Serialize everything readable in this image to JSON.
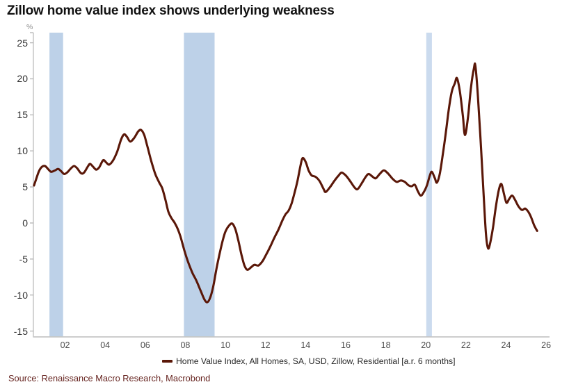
{
  "title": "Zillow home value index shows underlying weakness",
  "source": "Source: Renaissance Macro Research, Macrobond",
  "legend": {
    "label": "Home Value Index, All Homes, SA, USD, Zillow, Residential [a.r. 6 months]"
  },
  "colors": {
    "line": "#5a1708",
    "recession_band": "#bdd1e8",
    "recession_band_2020": "#cbdbee",
    "axis": "#c6c6c6",
    "tick": "#b4b4b4",
    "title_text": "#111111",
    "source_text": "#662420",
    "y_tick_label": "#333333",
    "x_tick_label": "#4d4d4d",
    "unit_label": "#8a8a8a"
  },
  "chart_data": {
    "type": "line",
    "title": "Zillow home value index shows underlying weakness",
    "xlabel": "",
    "ylabel": "%",
    "grid": false,
    "legend_position": "bottom-center",
    "xlim": [
      2000.42,
      2026.1
    ],
    "ylim": [
      -15.81,
      26.41
    ],
    "x_ticks": [
      {
        "year": 2002,
        "label": "02"
      },
      {
        "year": 2004,
        "label": "04"
      },
      {
        "year": 2006,
        "label": "06"
      },
      {
        "year": 2008,
        "label": "08"
      },
      {
        "year": 2010,
        "label": "10"
      },
      {
        "year": 2012,
        "label": "12"
      },
      {
        "year": 2014,
        "label": "14"
      },
      {
        "year": 2016,
        "label": "16"
      },
      {
        "year": 2018,
        "label": "18"
      },
      {
        "year": 2020,
        "label": "20"
      },
      {
        "year": 2022,
        "label": "22"
      },
      {
        "year": 2024,
        "label": "24"
      },
      {
        "year": 2026,
        "label": "26"
      }
    ],
    "y_ticks": [
      {
        "value": 25,
        "label": "25"
      },
      {
        "value": 20,
        "label": "20"
      },
      {
        "value": 15,
        "label": "15"
      },
      {
        "value": 10,
        "label": "10"
      },
      {
        "value": 5,
        "label": "5"
      },
      {
        "value": 0,
        "label": "0"
      },
      {
        "value": -5,
        "label": "-5"
      },
      {
        "value": -10,
        "label": "-10"
      },
      {
        "value": -15,
        "label": "-15"
      }
    ],
    "recession_bands": [
      {
        "from": 2001.22,
        "to": 2001.9,
        "color": "#bdd1e8"
      },
      {
        "from": 2007.93,
        "to": 2009.46,
        "color": "#bdd1e8"
      },
      {
        "from": 2020.02,
        "to": 2020.3,
        "color": "#cbdbee"
      }
    ],
    "series": [
      {
        "name": "Home Value Index, All Homes, SA, USD, Zillow, Residential [a.r. 6 months]",
        "color": "#5a1708",
        "points": [
          [
            2000.45,
            5.2
          ],
          [
            2000.55,
            6.0
          ],
          [
            2000.7,
            7.2
          ],
          [
            2000.85,
            7.8
          ],
          [
            2001.0,
            7.9
          ],
          [
            2001.15,
            7.5
          ],
          [
            2001.3,
            7.1
          ],
          [
            2001.5,
            7.3
          ],
          [
            2001.65,
            7.5
          ],
          [
            2001.8,
            7.2
          ],
          [
            2001.95,
            6.8
          ],
          [
            2002.1,
            7.0
          ],
          [
            2002.3,
            7.6
          ],
          [
            2002.45,
            7.9
          ],
          [
            2002.6,
            7.6
          ],
          [
            2002.8,
            6.9
          ],
          [
            2002.95,
            7.0
          ],
          [
            2003.15,
            7.9
          ],
          [
            2003.25,
            8.2
          ],
          [
            2003.4,
            7.8
          ],
          [
            2003.55,
            7.4
          ],
          [
            2003.7,
            7.7
          ],
          [
            2003.9,
            8.7
          ],
          [
            2004.05,
            8.4
          ],
          [
            2004.2,
            8.1
          ],
          [
            2004.4,
            8.7
          ],
          [
            2004.6,
            9.9
          ],
          [
            2004.8,
            11.6
          ],
          [
            2004.95,
            12.3
          ],
          [
            2005.1,
            11.9
          ],
          [
            2005.25,
            11.3
          ],
          [
            2005.45,
            11.8
          ],
          [
            2005.65,
            12.7
          ],
          [
            2005.8,
            12.9
          ],
          [
            2005.95,
            12.2
          ],
          [
            2006.1,
            10.7
          ],
          [
            2006.3,
            8.6
          ],
          [
            2006.5,
            6.8
          ],
          [
            2006.7,
            5.6
          ],
          [
            2006.85,
            4.8
          ],
          [
            2007.0,
            3.3
          ],
          [
            2007.15,
            1.6
          ],
          [
            2007.3,
            0.7
          ],
          [
            2007.45,
            0.1
          ],
          [
            2007.6,
            -0.7
          ],
          [
            2007.75,
            -1.8
          ],
          [
            2007.95,
            -3.8
          ],
          [
            2008.15,
            -5.5
          ],
          [
            2008.35,
            -6.9
          ],
          [
            2008.55,
            -8.0
          ],
          [
            2008.75,
            -9.3
          ],
          [
            2008.95,
            -10.6
          ],
          [
            2009.1,
            -11.0
          ],
          [
            2009.25,
            -10.3
          ],
          [
            2009.4,
            -8.7
          ],
          [
            2009.55,
            -6.4
          ],
          [
            2009.7,
            -4.4
          ],
          [
            2009.85,
            -2.6
          ],
          [
            2010.0,
            -1.2
          ],
          [
            2010.2,
            -0.3
          ],
          [
            2010.35,
            -0.1
          ],
          [
            2010.5,
            -0.9
          ],
          [
            2010.65,
            -2.5
          ],
          [
            2010.8,
            -4.4
          ],
          [
            2010.95,
            -5.9
          ],
          [
            2011.1,
            -6.5
          ],
          [
            2011.3,
            -6.1
          ],
          [
            2011.45,
            -5.8
          ],
          [
            2011.65,
            -5.9
          ],
          [
            2011.85,
            -5.3
          ],
          [
            2012.05,
            -4.3
          ],
          [
            2012.25,
            -3.2
          ],
          [
            2012.45,
            -2.0
          ],
          [
            2012.65,
            -0.9
          ],
          [
            2012.85,
            0.4
          ],
          [
            2013.0,
            1.2
          ],
          [
            2013.15,
            1.7
          ],
          [
            2013.3,
            2.7
          ],
          [
            2013.45,
            4.2
          ],
          [
            2013.6,
            5.9
          ],
          [
            2013.75,
            8.0
          ],
          [
            2013.85,
            9.0
          ],
          [
            2014.0,
            8.5
          ],
          [
            2014.15,
            7.3
          ],
          [
            2014.3,
            6.6
          ],
          [
            2014.5,
            6.4
          ],
          [
            2014.7,
            5.8
          ],
          [
            2014.9,
            4.7
          ],
          [
            2015.0,
            4.3
          ],
          [
            2015.2,
            4.9
          ],
          [
            2015.45,
            5.9
          ],
          [
            2015.65,
            6.6
          ],
          [
            2015.8,
            7.0
          ],
          [
            2016.0,
            6.6
          ],
          [
            2016.2,
            5.9
          ],
          [
            2016.45,
            4.9
          ],
          [
            2016.6,
            4.7
          ],
          [
            2016.8,
            5.5
          ],
          [
            2017.0,
            6.4
          ],
          [
            2017.15,
            6.8
          ],
          [
            2017.35,
            6.4
          ],
          [
            2017.5,
            6.2
          ],
          [
            2017.7,
            6.8
          ],
          [
            2017.9,
            7.3
          ],
          [
            2018.1,
            6.9
          ],
          [
            2018.35,
            6.1
          ],
          [
            2018.55,
            5.7
          ],
          [
            2018.75,
            5.9
          ],
          [
            2018.95,
            5.7
          ],
          [
            2019.15,
            5.2
          ],
          [
            2019.3,
            5.1
          ],
          [
            2019.45,
            5.3
          ],
          [
            2019.6,
            4.4
          ],
          [
            2019.75,
            3.8
          ],
          [
            2019.9,
            4.3
          ],
          [
            2020.05,
            5.2
          ],
          [
            2020.2,
            6.6
          ],
          [
            2020.3,
            7.1
          ],
          [
            2020.45,
            6.2
          ],
          [
            2020.55,
            5.6
          ],
          [
            2020.7,
            6.9
          ],
          [
            2020.85,
            9.6
          ],
          [
            2021.0,
            12.6
          ],
          [
            2021.15,
            15.9
          ],
          [
            2021.3,
            18.3
          ],
          [
            2021.45,
            19.4
          ],
          [
            2021.55,
            20.1
          ],
          [
            2021.7,
            18.2
          ],
          [
            2021.85,
            14.8
          ],
          [
            2021.95,
            12.2
          ],
          [
            2022.1,
            14.6
          ],
          [
            2022.25,
            18.8
          ],
          [
            2022.4,
            21.5
          ],
          [
            2022.47,
            21.8
          ],
          [
            2022.6,
            17.5
          ],
          [
            2022.75,
            10.5
          ],
          [
            2022.9,
            3.0
          ],
          [
            2023.0,
            -1.6
          ],
          [
            2023.1,
            -3.5
          ],
          [
            2023.2,
            -2.9
          ],
          [
            2023.35,
            -0.6
          ],
          [
            2023.5,
            2.4
          ],
          [
            2023.65,
            4.7
          ],
          [
            2023.77,
            5.4
          ],
          [
            2023.9,
            4.0
          ],
          [
            2024.02,
            2.8
          ],
          [
            2024.15,
            3.3
          ],
          [
            2024.3,
            3.8
          ],
          [
            2024.45,
            3.2
          ],
          [
            2024.62,
            2.3
          ],
          [
            2024.8,
            1.8
          ],
          [
            2024.95,
            2.0
          ],
          [
            2025.1,
            1.6
          ],
          [
            2025.25,
            0.8
          ],
          [
            2025.4,
            -0.3
          ],
          [
            2025.55,
            -1.1
          ]
        ]
      }
    ]
  }
}
